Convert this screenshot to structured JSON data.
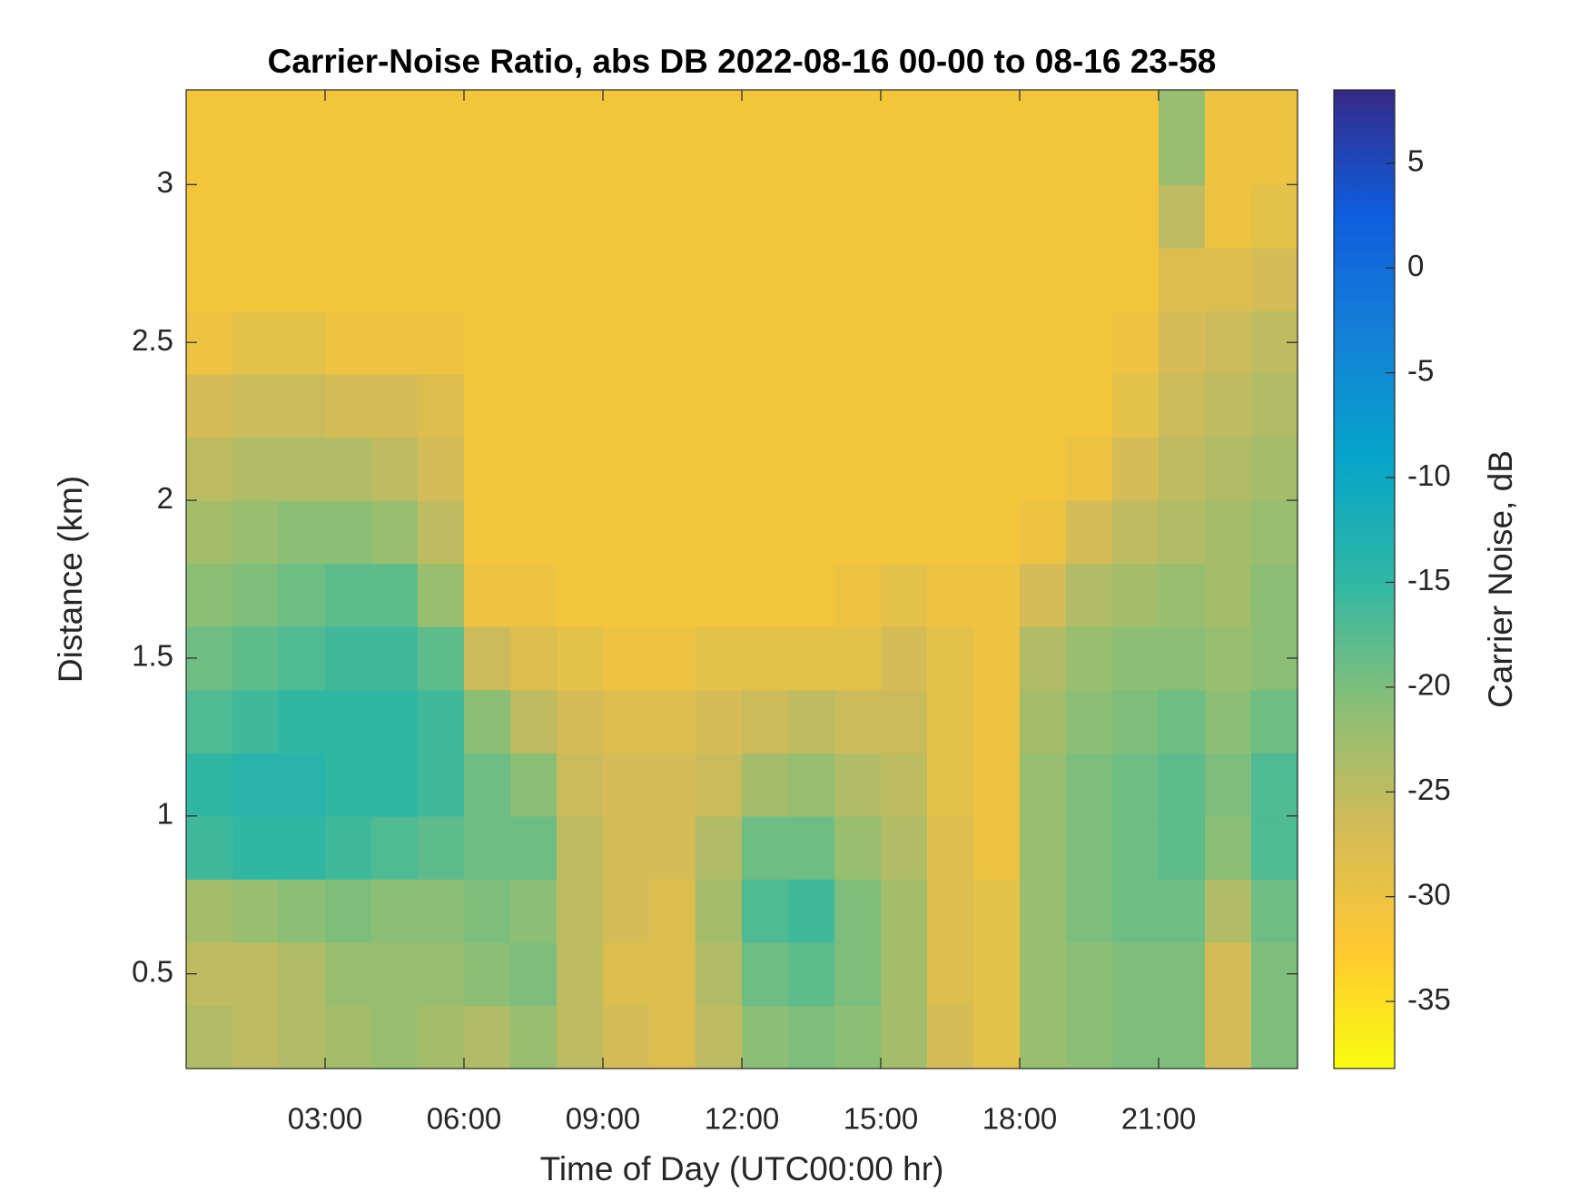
{
  "chart_data": {
    "type": "heatmap",
    "title": "Carrier-Noise Ratio, abs DB 2022-08-16 00-00 to 08-16 23-58",
    "xlabel": "Time of Day (UTC00:00 hr)",
    "ylabel": "Distance (km)",
    "colorbar_label": "Carrier Noise, dB",
    "x": [
      0.5,
      1.5,
      2.5,
      3.5,
      4.5,
      5.5,
      6.5,
      7.5,
      8.5,
      9.5,
      10.5,
      11.5,
      12.5,
      13.5,
      14.5,
      15.5,
      16.5,
      17.5,
      18.5,
      19.5,
      20.5,
      21.5,
      22.5,
      23.5
    ],
    "y": [
      0.3,
      0.5,
      0.7,
      0.9,
      1.1,
      1.3,
      1.5,
      1.7,
      1.9,
      2.1,
      2.3,
      2.5,
      2.7,
      2.9,
      3.1
    ],
    "values": [
      [
        -24,
        -25,
        -23,
        -16,
        -15,
        -17,
        -19,
        -21,
        -23,
        -25,
        -27,
        -30,
        -31,
        -31,
        -31
      ],
      [
        -25,
        -25,
        -22,
        -15,
        -14,
        -16,
        -18,
        -20,
        -22,
        -24,
        -26,
        -29,
        -31,
        -31,
        -31
      ],
      [
        -24,
        -24,
        -21,
        -15,
        -14,
        -15,
        -17,
        -19,
        -21,
        -24,
        -26,
        -29,
        -31,
        -31,
        -31
      ],
      [
        -23,
        -22,
        -20,
        -16,
        -15,
        -15,
        -16,
        -18,
        -21,
        -24,
        -27,
        -30,
        -31,
        -31,
        -31
      ],
      [
        -22,
        -22,
        -21,
        -17,
        -15,
        -15,
        -16,
        -18,
        -22,
        -25,
        -27,
        -30,
        -31,
        -31,
        -31
      ],
      [
        -23,
        -22,
        -21,
        -18,
        -16,
        -16,
        -18,
        -22,
        -25,
        -27,
        -28,
        -30,
        -31,
        -31,
        -31
      ],
      [
        -24,
        -21,
        -20,
        -19,
        -19,
        -21,
        -26,
        -30,
        -31,
        -31,
        -31,
        -31,
        -31,
        -31,
        -31
      ],
      [
        -22,
        -20,
        -21,
        -19,
        -21,
        -25,
        -28,
        -30,
        -31,
        -31,
        -31,
        -31,
        -31,
        -31,
        -31
      ],
      [
        -25,
        -25,
        -25,
        -25,
        -26,
        -27,
        -29,
        -31,
        -31,
        -31,
        -31,
        -31,
        -31,
        -31,
        -31
      ],
      [
        -27,
        -28,
        -27,
        -27,
        -27,
        -28,
        -30,
        -31,
        -31,
        -31,
        -31,
        -31,
        -31,
        -31,
        -31
      ],
      [
        -28,
        -28,
        -28,
        -27,
        -27,
        -28,
        -30,
        -31,
        -31,
        -31,
        -31,
        -31,
        -31,
        -31,
        -31
      ],
      [
        -25,
        -24,
        -23,
        -24,
        -26,
        -27,
        -29,
        -31,
        -31,
        -31,
        -31,
        -31,
        -31,
        -31,
        -31
      ],
      [
        -21,
        -19,
        -17,
        -19,
        -23,
        -26,
        -29,
        -31,
        -31,
        -31,
        -31,
        -31,
        -31,
        -31,
        -31
      ],
      [
        -20,
        -18,
        -16,
        -19,
        -22,
        -25,
        -29,
        -31,
        -31,
        -31,
        -31,
        -31,
        -31,
        -31,
        -31
      ],
      [
        -21,
        -20,
        -20,
        -22,
        -24,
        -26,
        -29,
        -30,
        -31,
        -31,
        -31,
        -31,
        -31,
        -31,
        -31
      ],
      [
        -23,
        -23,
        -23,
        -24,
        -25,
        -26,
        -27,
        -29,
        -31,
        -31,
        -31,
        -31,
        -31,
        -31,
        -31
      ],
      [
        -27,
        -28,
        -28,
        -28,
        -29,
        -29,
        -29,
        -30,
        -31,
        -31,
        -31,
        -31,
        -31,
        -31,
        -31
      ],
      [
        -29,
        -29,
        -29,
        -30,
        -30,
        -30,
        -30,
        -30,
        -31,
        -31,
        -31,
        -31,
        -31,
        -31,
        -31
      ],
      [
        -22,
        -22,
        -22,
        -22,
        -22,
        -23,
        -24,
        -27,
        -30,
        -31,
        -31,
        -31,
        -31,
        -31,
        -31
      ],
      [
        -21,
        -21,
        -20,
        -20,
        -20,
        -21,
        -22,
        -24,
        -27,
        -30,
        -31,
        -31,
        -31,
        -31,
        -31
      ],
      [
        -20,
        -20,
        -19,
        -19,
        -19,
        -20,
        -21,
        -23,
        -25,
        -27,
        -29,
        -30,
        -31,
        -31,
        -31
      ],
      [
        -20,
        -20,
        -19,
        -18,
        -18,
        -19,
        -21,
        -22,
        -24,
        -25,
        -26,
        -27,
        -28,
        -25,
        -22
      ],
      [
        -27,
        -27,
        -24,
        -21,
        -20,
        -21,
        -22,
        -23,
        -23,
        -24,
        -25,
        -26,
        -28,
        -30,
        -30
      ],
      [
        -20,
        -20,
        -19,
        -17,
        -17,
        -19,
        -21,
        -21,
        -22,
        -23,
        -24,
        -25,
        -27,
        -29,
        -30
      ]
    ],
    "xlim": [
      0,
      24
    ],
    "xticks": [
      {
        "value": 3,
        "label": "03:00"
      },
      {
        "value": 6,
        "label": "06:00"
      },
      {
        "value": 9,
        "label": "09:00"
      },
      {
        "value": 12,
        "label": "12:00"
      },
      {
        "value": 15,
        "label": "15:00"
      },
      {
        "value": 18,
        "label": "18:00"
      },
      {
        "value": 21,
        "label": "21:00"
      }
    ],
    "ylim": [
      0.2,
      3.3
    ],
    "yticks": [
      0.5,
      1,
      1.5,
      2,
      2.5,
      3
    ],
    "clim": [
      -38.2,
      8.5
    ],
    "cticks": [
      -35,
      -30,
      -25,
      -20,
      -15,
      -10,
      -5,
      0,
      5
    ],
    "colormap": [
      "#f9fb0e",
      "#fec832",
      "#d1bb59",
      "#87bf77",
      "#2eb7a4",
      "#06a4ca",
      "#1481d6",
      "#0f5cdd",
      "#352a87"
    ]
  }
}
